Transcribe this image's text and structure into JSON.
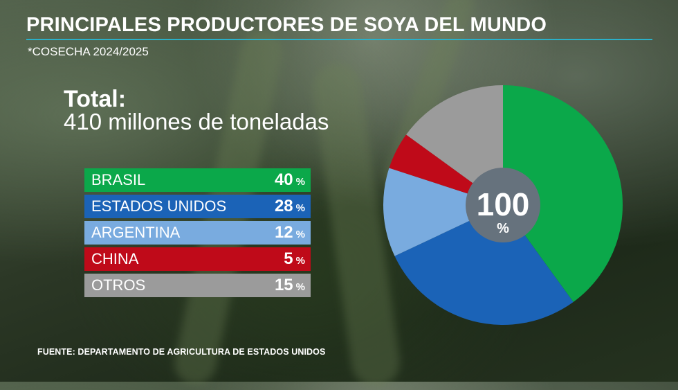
{
  "title": "PRINCIPALES PRODUCTORES DE SOYA DEL MUNDO",
  "subtitle": "*COSECHA 2024/2025",
  "total": {
    "label": "Total:",
    "value": "410 millones de toneladas"
  },
  "source": "FUENTE: DEPARTAMENTO DE AGRICULTURA DE ESTADOS UNIDOS",
  "chart_data": {
    "type": "pie",
    "title": "PRINCIPALES PRODUCTORES DE SOYA DEL MUNDO",
    "categories": [
      "BRASIL",
      "ESTADOS UNIDOS",
      "ARGENTINA",
      "CHINA",
      "OTROS"
    ],
    "values": [
      40,
      28,
      12,
      5,
      15
    ],
    "colors": [
      "#0ba84a",
      "#1b63b7",
      "#79abdf",
      "#bf0a19",
      "#9b9b9b"
    ],
    "unit": "%",
    "center_label": {
      "value": "100",
      "unit": "%"
    },
    "legend": [
      {
        "name": "BRASIL",
        "value": "40",
        "unit": "%"
      },
      {
        "name": "ESTADOS UNIDOS",
        "value": "28",
        "unit": "%"
      },
      {
        "name": "ARGENTINA",
        "value": "12",
        "unit": "%"
      },
      {
        "name": "CHINA",
        "value": "5",
        "unit": "%"
      },
      {
        "name": "OTROS",
        "value": "15",
        "unit": "%"
      }
    ]
  }
}
